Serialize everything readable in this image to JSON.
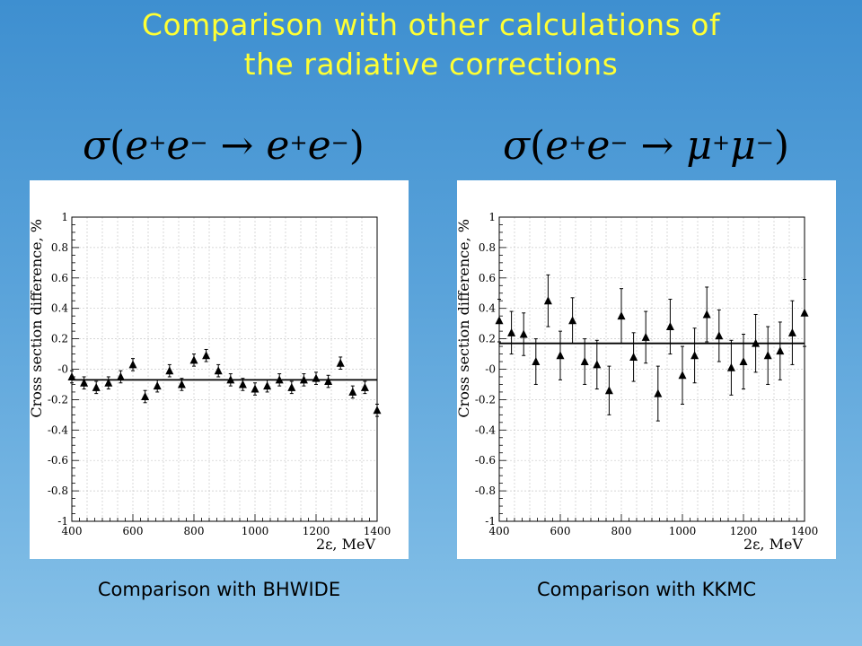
{
  "title": {
    "line1": "Comparison with other calculations of",
    "line2": "the radiative corrections"
  },
  "formulas": {
    "left": {
      "sigma": "σ",
      "open": "(",
      "e1": "e",
      "p1": "+",
      "e2": "e",
      "m1": "−",
      "arrow": "→",
      "e3": "e",
      "p2": "+",
      "e4": "e",
      "m2": "−",
      "close": ")"
    },
    "right": {
      "sigma": "σ",
      "open": "(",
      "e1": "e",
      "p1": "+",
      "e2": "e",
      "m1": "−",
      "arrow": "→",
      "e3": "μ",
      "p2": "+",
      "e4": "μ",
      "m2": "−",
      "close": ")"
    }
  },
  "captions": {
    "left": "Comparison with BHWIDE",
    "right": "Comparison with KKMC"
  },
  "chart_data": [
    {
      "type": "scatter",
      "xlabel": "2ε, MeV",
      "ylabel": "Cross section difference, %",
      "xlim": [
        400,
        1400
      ],
      "ylim": [
        -1,
        1
      ],
      "xticks": [
        400,
        600,
        800,
        1000,
        1200,
        1400
      ],
      "xtick_labels": [
        "400",
        "600",
        "800",
        "1000",
        "1200",
        "1400"
      ],
      "yticks": [
        1,
        0.8,
        0.6,
        0.4,
        0.2,
        0,
        -0.2,
        -0.4,
        -0.6,
        -0.8,
        -1
      ],
      "ytick_labels": [
        "1",
        "0.8",
        "0.6",
        "0.4",
        "0.2",
        "-0",
        "-0.2",
        "-0.4",
        "-0.6",
        "-0.8",
        "-1"
      ],
      "grid": true,
      "marker": "filled-triangle",
      "fit_line": {
        "y": -0.07,
        "x_range": [
          400,
          1400
        ]
      },
      "x": [
        400,
        440,
        480,
        520,
        560,
        600,
        640,
        680,
        720,
        760,
        800,
        840,
        880,
        920,
        960,
        1000,
        1040,
        1080,
        1120,
        1160,
        1200,
        1240,
        1280,
        1320,
        1360,
        1400
      ],
      "y": [
        -0.05,
        -0.09,
        -0.12,
        -0.09,
        -0.05,
        0.03,
        -0.18,
        -0.11,
        -0.01,
        -0.1,
        0.06,
        0.09,
        -0.01,
        -0.07,
        -0.1,
        -0.13,
        -0.11,
        -0.07,
        -0.12,
        -0.07,
        -0.06,
        -0.08,
        0.04,
        -0.15,
        -0.12,
        -0.27
      ],
      "err": [
        0.04,
        0.04,
        0.04,
        0.04,
        0.04,
        0.04,
        0.04,
        0.04,
        0.04,
        0.04,
        0.04,
        0.04,
        0.04,
        0.04,
        0.04,
        0.04,
        0.04,
        0.04,
        0.04,
        0.04,
        0.04,
        0.04,
        0.04,
        0.04,
        0.04,
        0.04
      ]
    },
    {
      "type": "scatter",
      "xlabel": "2ε, MeV",
      "ylabel": "Cross section difference, %",
      "xlim": [
        400,
        1400
      ],
      "ylim": [
        -1,
        1
      ],
      "xticks": [
        400,
        600,
        800,
        1000,
        1200,
        1400
      ],
      "xtick_labels": [
        "400",
        "600",
        "800",
        "1000",
        "1200",
        "1400"
      ],
      "yticks": [
        1,
        0.8,
        0.6,
        0.4,
        0.2,
        0,
        -0.2,
        -0.4,
        -0.6,
        -0.8,
        -1
      ],
      "ytick_labels": [
        "1",
        "0.8",
        "0.6",
        "0.4",
        "0.2",
        "-0",
        "-0.2",
        "-0.4",
        "-0.6",
        "-0.8",
        "-1"
      ],
      "grid": true,
      "marker": "filled-triangle",
      "fit_line": {
        "y": 0.17,
        "x_range": [
          400,
          1400
        ]
      },
      "x": [
        400,
        440,
        480,
        520,
        560,
        600,
        640,
        680,
        720,
        760,
        800,
        840,
        880,
        920,
        960,
        1000,
        1040,
        1080,
        1120,
        1160,
        1200,
        1240,
        1280,
        1320,
        1360,
        1400
      ],
      "y": [
        0.32,
        0.24,
        0.23,
        0.05,
        0.45,
        0.09,
        0.32,
        0.05,
        0.03,
        -0.14,
        0.35,
        0.08,
        0.21,
        -0.16,
        0.28,
        -0.04,
        0.09,
        0.36,
        0.22,
        0.01,
        0.05,
        0.17,
        0.09,
        0.12,
        0.24,
        0.37
      ],
      "err": [
        0.14,
        0.14,
        0.14,
        0.15,
        0.17,
        0.16,
        0.15,
        0.15,
        0.16,
        0.16,
        0.18,
        0.16,
        0.17,
        0.18,
        0.18,
        0.19,
        0.18,
        0.18,
        0.17,
        0.18,
        0.18,
        0.19,
        0.19,
        0.19,
        0.21,
        0.22
      ]
    }
  ]
}
